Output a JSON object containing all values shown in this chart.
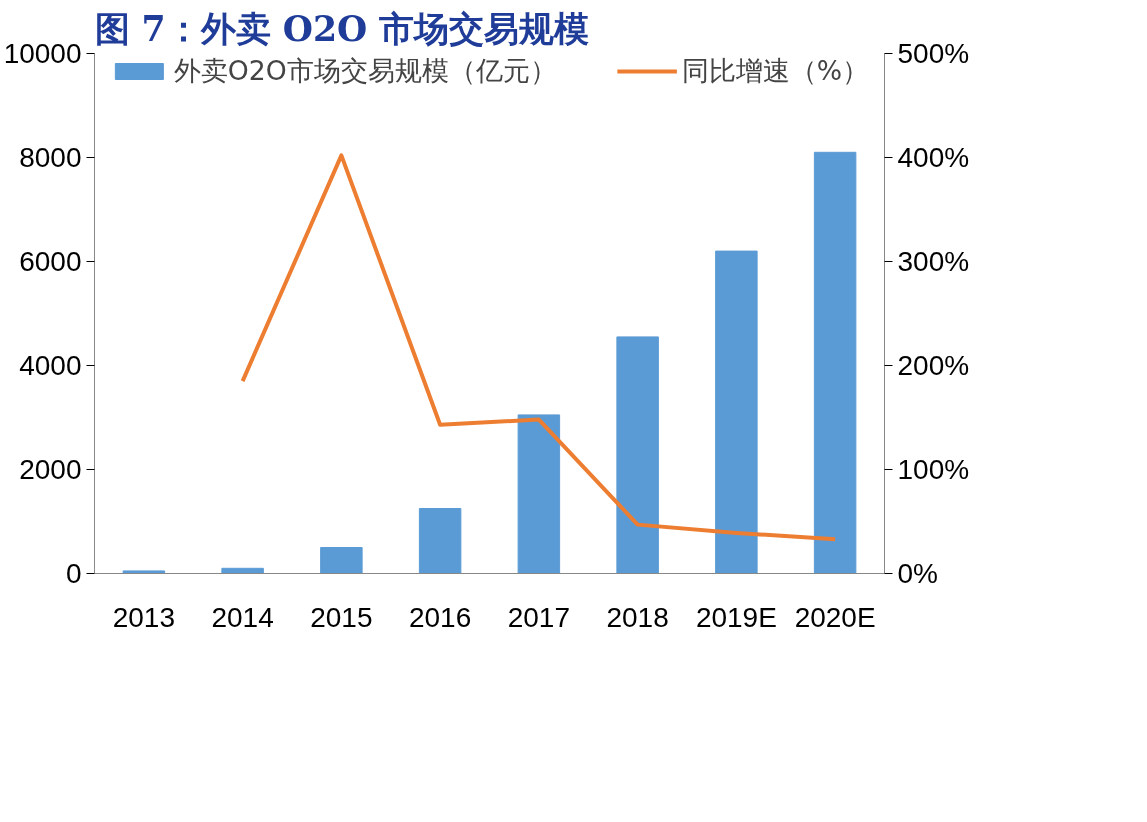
{
  "chart_data": {
    "type": "bar",
    "title": "图 7：外卖 O2O 市场交易规模",
    "categories": [
      "2013",
      "2014",
      "2015",
      "2016",
      "2017",
      "2018",
      "2019E",
      "2020E"
    ],
    "series": [
      {
        "name": "外卖O2O市场交易规模（亿元）",
        "color": "#5b9bd5",
        "values": [
          50,
          100,
          500,
          1250,
          3050,
          4550,
          6200,
          8100
        ]
      },
      {
        "name": "同比增速（%）",
        "type": "line",
        "axis": "y2",
        "color": "#ed7d31",
        "values": [
          null,
          185,
          402,
          143,
          148,
          47,
          39,
          33
        ]
      }
    ],
    "ylim": [
      0,
      10000
    ],
    "yticks": [
      0,
      2000,
      4000,
      6000,
      8000,
      10000
    ],
    "y2lim": [
      0,
      500
    ],
    "y2ticks": [
      {
        "value": 0,
        "label": "0%"
      },
      {
        "value": 100,
        "label": "100%"
      },
      {
        "value": 200,
        "label": "200%"
      },
      {
        "value": 300,
        "label": "300%"
      },
      {
        "value": 400,
        "label": "400%"
      },
      {
        "value": 500,
        "label": "500%"
      }
    ],
    "legend": "top",
    "grid": false,
    "line_style": "solid",
    "marker": "none"
  }
}
